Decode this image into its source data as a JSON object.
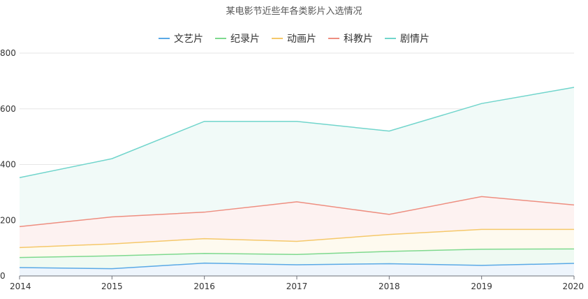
{
  "chart_data": {
    "type": "area",
    "title": "某电影节近些年各类影片入选情况",
    "x": [
      "2014",
      "2015",
      "2016",
      "2017",
      "2018",
      "2019",
      "2020"
    ],
    "ylim": [
      0,
      800
    ],
    "yticks": [
      "0",
      "200",
      "400",
      "600",
      "800"
    ],
    "stacked": true,
    "grid": true,
    "legend_position": "top-center",
    "series": [
      {
        "name": "文艺片",
        "color": "#5aa9e6",
        "fill": "#eef5fc",
        "values": [
          30,
          26,
          46,
          40,
          44,
          38,
          45
        ]
      },
      {
        "name": "纪录片",
        "color": "#7ed98e",
        "fill": "#effaf2",
        "values": [
          36,
          46,
          35,
          37,
          44,
          58,
          52
        ]
      },
      {
        "name": "动画片",
        "color": "#f5c86a",
        "fill": "#fefaef",
        "values": [
          36,
          43,
          53,
          47,
          61,
          71,
          70
        ]
      },
      {
        "name": "科教片",
        "color": "#ee8e80",
        "fill": "#fdf2f1",
        "values": [
          75,
          97,
          95,
          142,
          72,
          118,
          88
        ]
      },
      {
        "name": "剧情片",
        "color": "#71d5cc",
        "fill": "#f1faf8",
        "values": [
          176,
          209,
          326,
          289,
          299,
          334,
          422
        ]
      }
    ]
  }
}
